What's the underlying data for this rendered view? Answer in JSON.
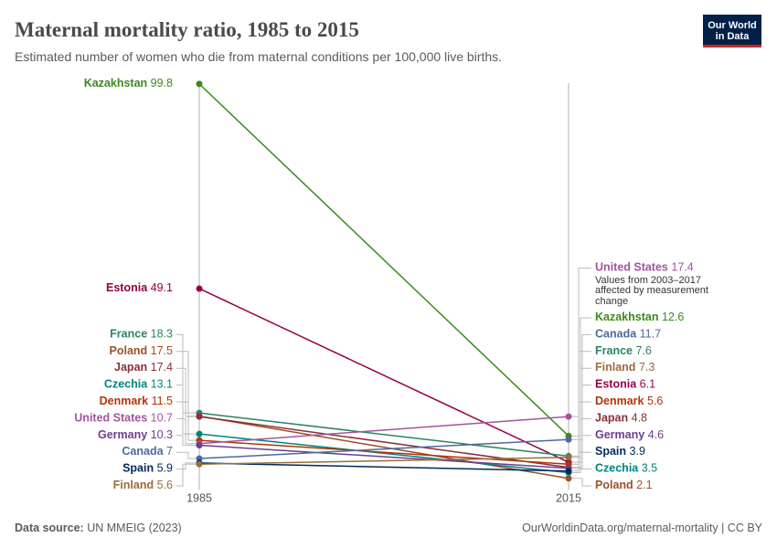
{
  "chart_data": {
    "type": "slope",
    "title": "Maternal mortality ratio, 1985 to 2015",
    "subtitle": "Estimated number of women who die from maternal conditions per 100,000 live births.",
    "logo": [
      "Our World",
      "in Data"
    ],
    "source_label": "Data source:",
    "source": "UN MMEIG (2023)",
    "credit": "OurWorldinData.org/maternal-mortality | CC BY",
    "x": [
      1985,
      2015
    ],
    "ylim": [
      0,
      100
    ],
    "series": [
      {
        "name": "Kazakhstan",
        "color": "#3c8a1d",
        "values": [
          99.8,
          12.6
        ]
      },
      {
        "name": "Estonia",
        "color": "#970046",
        "values": [
          49.1,
          6.1
        ]
      },
      {
        "name": "France",
        "color": "#2c8465",
        "values": [
          18.3,
          7.6
        ]
      },
      {
        "name": "Poland",
        "color": "#9a5129",
        "values": [
          17.5,
          2.1
        ]
      },
      {
        "name": "Japan",
        "color": "#883039",
        "values": [
          17.4,
          4.8
        ]
      },
      {
        "name": "Czechia",
        "color": "#00847e",
        "values": [
          13.1,
          3.5
        ]
      },
      {
        "name": "Denmark",
        "color": "#b13507",
        "values": [
          11.5,
          5.6
        ]
      },
      {
        "name": "United States",
        "color": "#a2559c",
        "values": [
          10.7,
          17.4
        ],
        "annotation": "Values from 2003–2017 affected by measurement change"
      },
      {
        "name": "Germany",
        "color": "#6d3e91",
        "values": [
          10.3,
          4.6
        ]
      },
      {
        "name": "Canada",
        "color": "#4c6a9c",
        "values": [
          7,
          11.7
        ]
      },
      {
        "name": "Spain",
        "color": "#00295b",
        "values": [
          5.9,
          3.9
        ]
      },
      {
        "name": "Finland",
        "color": "#996d39",
        "values": [
          5.6,
          7.3
        ]
      }
    ]
  }
}
